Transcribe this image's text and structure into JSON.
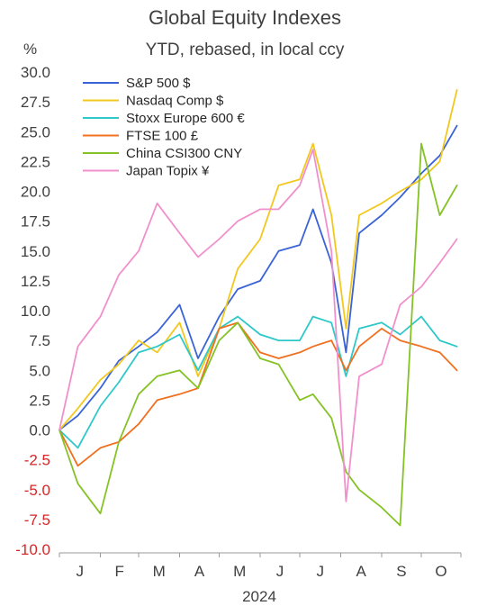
{
  "chart_data": {
    "type": "line",
    "title": "Global Equity Indexes",
    "subtitle": "YTD, rebased, in local ccy",
    "ylabel": "%",
    "xlabel": "2024",
    "ylim": [
      -10,
      30
    ],
    "y_ticks": [
      "30.0",
      "27.5",
      "25.0",
      "22.5",
      "20.0",
      "17.5",
      "15.0",
      "12.5",
      "10.0",
      "7.5",
      "5.0",
      "2.5",
      "0.0",
      "-2.5",
      "-5.0",
      "-7.5",
      "-10.0"
    ],
    "x_ticks": [
      "J",
      "F",
      "M",
      "A",
      "M",
      "J",
      "J",
      "A",
      "S",
      "O"
    ],
    "grid": false,
    "legend_position": "top-left",
    "negative_tick_color": "#d62728",
    "positive_tick_color": "#404040",
    "x": [
      "2024-01-01",
      "2024-01-15",
      "2024-02-01",
      "2024-02-15",
      "2024-03-01",
      "2024-03-15",
      "2024-04-01",
      "2024-04-15",
      "2024-05-01",
      "2024-05-15",
      "2024-06-01",
      "2024-06-15",
      "2024-07-01",
      "2024-07-11",
      "2024-07-25",
      "2024-08-05",
      "2024-08-15",
      "2024-09-01",
      "2024-09-15",
      "2024-10-01",
      "2024-10-15",
      "2024-10-28"
    ],
    "series": [
      {
        "name": "S&P 500 $",
        "color": "#3a63d6",
        "values": [
          0.0,
          1.2,
          3.5,
          5.8,
          7.0,
          8.2,
          10.5,
          6.0,
          9.5,
          11.8,
          12.5,
          15.0,
          15.5,
          18.5,
          14.0,
          6.5,
          16.5,
          18.0,
          19.5,
          21.5,
          23.0,
          25.5
        ]
      },
      {
        "name": "Nasdaq Comp $",
        "color": "#f2c81e",
        "values": [
          0.0,
          1.8,
          4.2,
          5.5,
          7.5,
          6.5,
          9.0,
          4.5,
          8.5,
          13.5,
          16.0,
          20.5,
          21.0,
          24.0,
          18.0,
          8.5,
          18.0,
          19.0,
          20.0,
          21.0,
          22.5,
          28.5
        ]
      },
      {
        "name": "Stoxx Europe 600 €",
        "color": "#2ec8c8",
        "values": [
          0.0,
          -1.5,
          2.0,
          4.0,
          6.5,
          7.0,
          8.0,
          5.0,
          8.5,
          9.5,
          8.0,
          7.5,
          7.5,
          9.5,
          9.0,
          4.5,
          8.5,
          9.0,
          8.0,
          9.5,
          7.5,
          7.0
        ]
      },
      {
        "name": "FTSE 100 £",
        "color": "#f07020",
        "values": [
          0.0,
          -3.0,
          -1.5,
          -1.0,
          0.5,
          2.5,
          3.0,
          3.5,
          8.5,
          9.0,
          6.5,
          6.0,
          6.5,
          7.0,
          7.5,
          5.0,
          7.0,
          8.5,
          7.5,
          7.0,
          6.5,
          5.0
        ]
      },
      {
        "name": "China CSI300 CNY",
        "color": "#84c225",
        "values": [
          0.0,
          -4.5,
          -7.0,
          -1.0,
          3.0,
          4.5,
          5.0,
          3.5,
          7.5,
          9.0,
          6.0,
          5.5,
          2.5,
          3.0,
          1.0,
          -3.5,
          -5.0,
          -6.5,
          -8.0,
          24.0,
          18.0,
          20.5
        ]
      },
      {
        "name": "Japan Topix ¥",
        "color": "#f090cc",
        "values": [
          0.0,
          7.0,
          9.5,
          13.0,
          15.0,
          19.0,
          16.5,
          14.5,
          16.0,
          17.5,
          18.5,
          18.5,
          20.5,
          23.5,
          15.0,
          -6.0,
          4.5,
          5.5,
          10.5,
          12.0,
          14.0,
          16.0
        ]
      }
    ]
  }
}
